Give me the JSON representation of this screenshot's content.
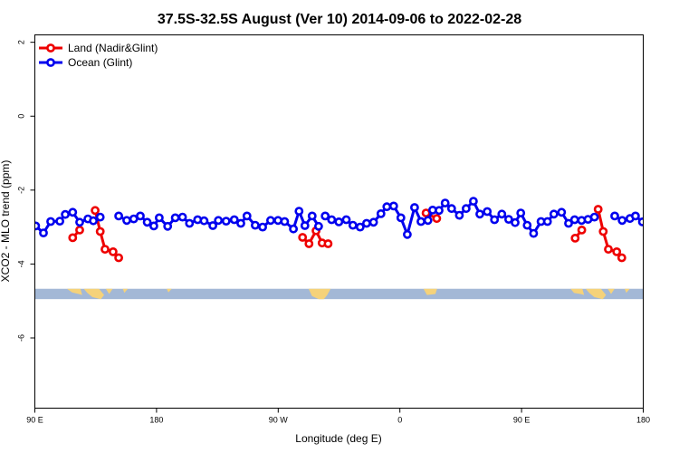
{
  "chart_data": {
    "type": "line",
    "title": "37.5S-32.5S August (Ver 10)   2014-09-06 to 2022-02-28",
    "xlabel": "Longitude (deg E)",
    "ylabel": "XCO2 - MLO trend (ppm)",
    "xlim": [
      90,
      450
    ],
    "ylim": [
      -7.9,
      2.2
    ],
    "xticks": [
      {
        "value": 90,
        "label": "90 E"
      },
      {
        "value": 162,
        "label": "180"
      },
      {
        "value": 234,
        "label": "90 W"
      },
      {
        "value": 306,
        "label": "0"
      },
      {
        "value": 378,
        "label": "90 E"
      },
      {
        "value": 450,
        "label": "180"
      }
    ],
    "yticks": [
      {
        "value": 2,
        "label": "2"
      },
      {
        "value": 0,
        "label": "0"
      },
      {
        "value": -2,
        "label": "-2"
      },
      {
        "value": -4,
        "label": "-4"
      },
      {
        "value": -6,
        "label": "-6"
      }
    ],
    "legend_position": "top-left",
    "map_strip": {
      "y_top": -4.67,
      "y_bottom": -4.95,
      "ocean_color": "#a3b8d6",
      "land_color": "#f5d27a"
    },
    "series": [
      {
        "name": "Land (Nadir&Glint)",
        "color": "#ee0000",
        "segments": [
          [
            [
              112.4,
              -3.29
            ],
            [
              116.5,
              -3.08
            ]
          ],
          [
            [
              125.7,
              -2.55
            ],
            [
              128.7,
              -3.12
            ],
            [
              131.5,
              -3.6
            ],
            [
              136.3,
              -3.67
            ],
            [
              139.6,
              -3.83
            ]
          ],
          [
            [
              248.4,
              -3.28
            ],
            [
              252.2,
              -3.45
            ],
            [
              256.4,
              -3.1
            ],
            [
              260.0,
              -3.43
            ],
            [
              263.5,
              -3.45
            ]
          ],
          [
            [
              321.5,
              -2.62
            ],
            [
              327.8,
              -2.77
            ]
          ],
          [
            [
              409.7,
              -3.3
            ],
            [
              413.6,
              -3.08
            ]
          ],
          [
            [
              423.3,
              -2.52
            ],
            [
              426.3,
              -3.12
            ],
            [
              429.4,
              -3.6
            ],
            [
              434.3,
              -3.67
            ],
            [
              437.3,
              -3.83
            ]
          ]
        ]
      },
      {
        "name": "Ocean (Glint)",
        "color": "#0000ee",
        "segments": [
          [
            [
              90.5,
              -2.97
            ],
            [
              95.1,
              -3.16
            ],
            [
              99.4,
              -2.85
            ],
            [
              104.8,
              -2.84
            ],
            [
              108.0,
              -2.66
            ],
            [
              112.4,
              -2.6
            ],
            [
              116.5,
              -2.87
            ],
            [
              121.4,
              -2.78
            ],
            [
              124.6,
              -2.83
            ],
            [
              128.7,
              -2.73
            ]
          ],
          [
            [
              139.6,
              -2.7
            ],
            [
              144.4,
              -2.82
            ],
            [
              148.5,
              -2.78
            ],
            [
              152.4,
              -2.7
            ],
            [
              156.5,
              -2.87
            ],
            [
              160.4,
              -2.97
            ],
            [
              163.6,
              -2.75
            ],
            [
              168.6,
              -2.98
            ],
            [
              173.1,
              -2.75
            ],
            [
              177.4,
              -2.73
            ],
            [
              181.5,
              -2.9
            ],
            [
              186.3,
              -2.8
            ],
            [
              190.1,
              -2.83
            ],
            [
              195.3,
              -2.96
            ],
            [
              198.6,
              -2.82
            ],
            [
              203.2,
              -2.84
            ],
            [
              208.0,
              -2.8
            ],
            [
              211.9,
              -2.9
            ],
            [
              215.5,
              -2.7
            ],
            [
              220.4,
              -2.95
            ],
            [
              224.8,
              -3.0
            ],
            [
              229.5,
              -2.82
            ],
            [
              233.9,
              -2.82
            ],
            [
              237.8,
              -2.85
            ],
            [
              243.0,
              -3.05
            ],
            [
              246.3,
              -2.57
            ],
            [
              249.8,
              -2.96
            ],
            [
              254.1,
              -2.7
            ],
            [
              257.9,
              -2.98
            ]
          ],
          [
            [
              261.8,
              -2.7
            ],
            [
              265.6,
              -2.8
            ],
            [
              269.9,
              -2.86
            ],
            [
              274.3,
              -2.8
            ],
            [
              278.2,
              -2.95
            ],
            [
              282.5,
              -3.0
            ],
            [
              286.3,
              -2.9
            ],
            [
              290.4,
              -2.87
            ],
            [
              294.8,
              -2.64
            ],
            [
              298.3,
              -2.45
            ],
            [
              302.3,
              -2.43
            ],
            [
              306.6,
              -2.75
            ],
            [
              310.4,
              -3.2
            ],
            [
              314.7,
              -2.47
            ],
            [
              318.5,
              -2.85
            ],
            [
              322.6,
              -2.82
            ],
            [
              325.4,
              -2.54
            ],
            [
              329.2,
              -2.55
            ],
            [
              332.8,
              -2.35
            ],
            [
              336.6,
              -2.5
            ],
            [
              341.2,
              -2.68
            ],
            [
              345.2,
              -2.5
            ],
            [
              349.5,
              -2.3
            ],
            [
              353.3,
              -2.65
            ],
            [
              357.7,
              -2.58
            ],
            [
              362.0,
              -2.8
            ],
            [
              366.3,
              -2.65
            ],
            [
              370.4,
              -2.79
            ],
            [
              374.2,
              -2.88
            ],
            [
              377.5,
              -2.62
            ],
            [
              381.3,
              -2.95
            ],
            [
              385.1,
              -3.17
            ],
            [
              389.5,
              -2.85
            ],
            [
              393.3,
              -2.85
            ],
            [
              397.1,
              -2.65
            ],
            [
              401.7,
              -2.6
            ],
            [
              405.8,
              -2.9
            ],
            [
              409.4,
              -2.8
            ],
            [
              413.5,
              -2.82
            ],
            [
              417.3,
              -2.79
            ],
            [
              421.1,
              -2.73
            ]
          ],
          [
            [
              433.1,
              -2.7
            ],
            [
              437.5,
              -2.82
            ],
            [
              442.1,
              -2.77
            ],
            [
              445.4,
              -2.7
            ],
            [
              449.5,
              -2.86
            ],
            [
              453.3,
              -3.0
            ]
          ]
        ]
      }
    ]
  }
}
